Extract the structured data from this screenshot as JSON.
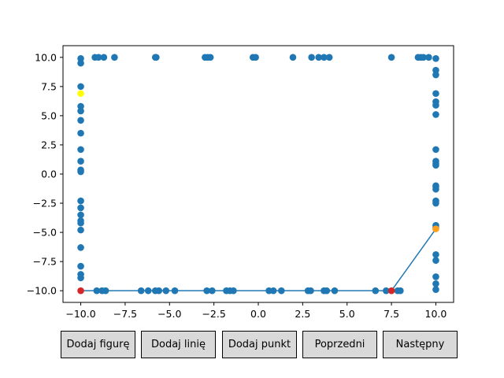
{
  "chart_data": {
    "type": "scatter",
    "xlim": [
      -11,
      11
    ],
    "ylim": [
      -11,
      11
    ],
    "x_ticks": [
      -10,
      -7.5,
      -5,
      -2.5,
      0,
      2.5,
      5,
      7.5,
      10
    ],
    "x_tick_labels": [
      "−10.0",
      "−7.5",
      "−5.0",
      "−2.5",
      "0.0",
      "2.5",
      "5.0",
      "7.5",
      "10.0"
    ],
    "y_ticks": [
      10,
      7.5,
      5,
      2.5,
      0,
      -2.5,
      -5,
      -7.5,
      -10
    ],
    "y_tick_labels": [
      "10.0",
      "7.5",
      "5.0",
      "2.5",
      "0.0",
      "−2.5",
      "−5.0",
      "−7.5",
      "−10.0"
    ],
    "colors": {
      "points": "#1f77b4",
      "line": "#1f77b4",
      "highlight": "#ffff00",
      "endpoint": "#d62728",
      "current": "#ff9f1c",
      "axes": "#000000"
    },
    "series": [
      {
        "name": "points",
        "points": [
          [
            -9.2,
            10
          ],
          [
            -9.0,
            10
          ],
          [
            -8.7,
            10
          ],
          [
            -8.1,
            10
          ],
          [
            -5.8,
            10
          ],
          [
            -5.75,
            10
          ],
          [
            -3.0,
            10
          ],
          [
            -2.85,
            10
          ],
          [
            -2.7,
            10
          ],
          [
            -0.3,
            10
          ],
          [
            -0.15,
            10
          ],
          [
            1.95,
            10
          ],
          [
            3.0,
            10
          ],
          [
            3.4,
            10
          ],
          [
            3.7,
            10
          ],
          [
            4.0,
            10
          ],
          [
            7.5,
            10
          ],
          [
            9.0,
            10
          ],
          [
            9.15,
            10
          ],
          [
            9.3,
            10
          ],
          [
            9.6,
            10
          ],
          [
            -10,
            9.9
          ],
          [
            -10,
            9.5
          ],
          [
            -10,
            7.5
          ],
          [
            -10,
            5.8
          ],
          [
            -10,
            5.4
          ],
          [
            -10,
            4.6
          ],
          [
            -10,
            3.5
          ],
          [
            -10,
            2.1
          ],
          [
            -10,
            1.1
          ],
          [
            -10,
            0.35
          ],
          [
            -10,
            0.2
          ],
          [
            -10,
            -2.3
          ],
          [
            -10,
            -2.9
          ],
          [
            -10,
            -3.5
          ],
          [
            -10,
            -4.0
          ],
          [
            -10,
            -4.2
          ],
          [
            -10,
            -4.8
          ],
          [
            -10,
            -6.3
          ],
          [
            -10,
            -7.9
          ],
          [
            -10,
            -8.6
          ],
          [
            -10,
            -8.9
          ],
          [
            10,
            9.9
          ],
          [
            10,
            8.9
          ],
          [
            10,
            8.5
          ],
          [
            10,
            6.9
          ],
          [
            10,
            6.2
          ],
          [
            10,
            5.9
          ],
          [
            10,
            5.1
          ],
          [
            10,
            2.1
          ],
          [
            10,
            1.1
          ],
          [
            10,
            0.9
          ],
          [
            10,
            0.75
          ],
          [
            10,
            -1.0
          ],
          [
            10,
            -1.1
          ],
          [
            10,
            -1.3
          ],
          [
            10,
            -2.3
          ],
          [
            10,
            -2.5
          ],
          [
            10,
            -4.4
          ],
          [
            10,
            -4.6
          ],
          [
            10,
            -6.9
          ],
          [
            10,
            -7.4
          ],
          [
            10,
            -8.8
          ],
          [
            10,
            -9.4
          ],
          [
            10,
            -9.9
          ],
          [
            -9.1,
            -10
          ],
          [
            -8.8,
            -10
          ],
          [
            -8.6,
            -10
          ],
          [
            -6.6,
            -10
          ],
          [
            -6.2,
            -10
          ],
          [
            -5.8,
            -10
          ],
          [
            -5.6,
            -10
          ],
          [
            -5.2,
            -10
          ],
          [
            -4.7,
            -10
          ],
          [
            -2.9,
            -10
          ],
          [
            -2.6,
            -10
          ],
          [
            -1.8,
            -10
          ],
          [
            -1.6,
            -10
          ],
          [
            -1.4,
            -10
          ],
          [
            0.6,
            -10
          ],
          [
            0.85,
            -10
          ],
          [
            1.3,
            -10
          ],
          [
            2.8,
            -10
          ],
          [
            2.95,
            -10
          ],
          [
            3.7,
            -10
          ],
          [
            3.85,
            -10
          ],
          [
            4.3,
            -10
          ],
          [
            6.6,
            -10
          ],
          [
            7.2,
            -10
          ],
          [
            7.85,
            -10
          ],
          [
            8.0,
            -10
          ]
        ]
      },
      {
        "name": "line",
        "points": [
          [
            -10,
            -10
          ],
          [
            7.5,
            -10
          ],
          [
            10,
            -4.7
          ]
        ]
      },
      {
        "name": "highlight",
        "points": [
          [
            -10,
            6.9
          ]
        ]
      },
      {
        "name": "endpoints",
        "points": [
          [
            -10,
            -10
          ],
          [
            7.5,
            -10
          ]
        ]
      },
      {
        "name": "current",
        "points": [
          [
            10,
            -4.7
          ]
        ]
      }
    ]
  },
  "buttons": {
    "add_figure": "Dodaj figurę",
    "add_line": "Dodaj linię",
    "add_point": "Dodaj punkt",
    "previous": "Poprzedni",
    "next": "Następny"
  }
}
